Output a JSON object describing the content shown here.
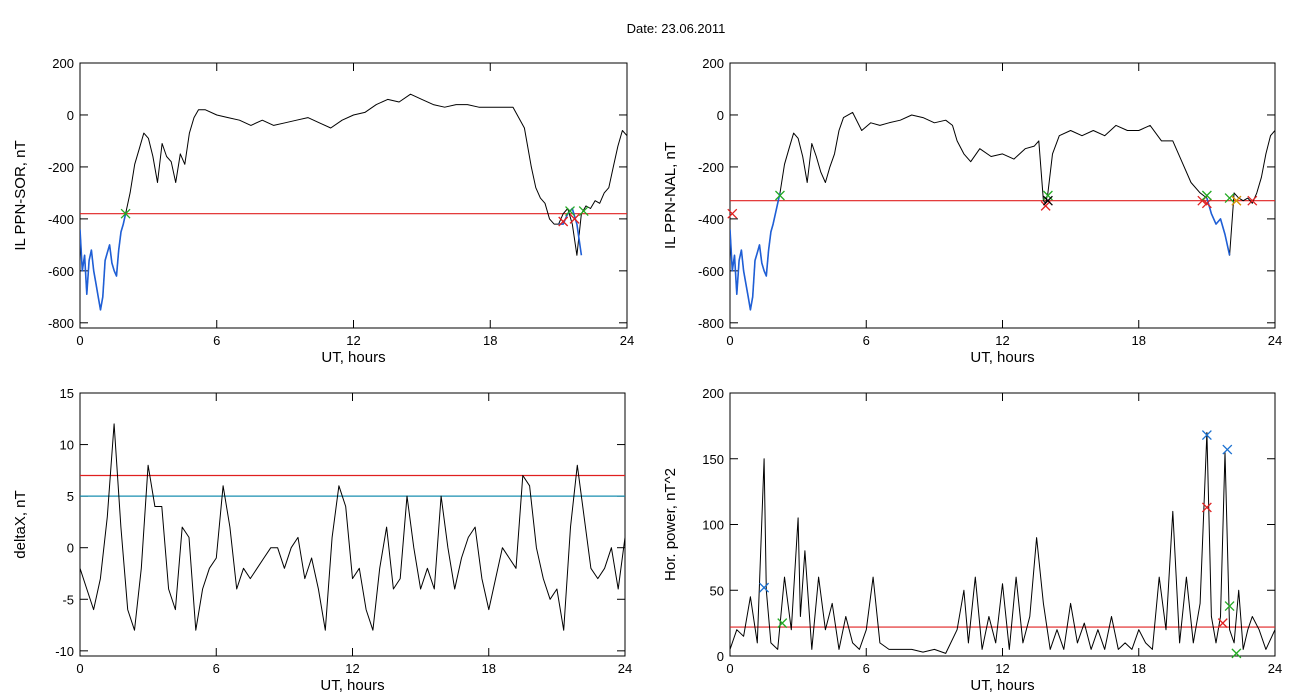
{
  "figure": {
    "title": "Date:  23.06.2011"
  },
  "chart_data": [
    {
      "id": "ppn-sor",
      "type": "line",
      "xlabel": "UT, hours",
      "ylabel": "IL PPN-SOR, nT",
      "xlim": [
        0,
        24
      ],
      "ylim": [
        -820,
        200
      ],
      "xticks": [
        0,
        6,
        12,
        18,
        24
      ],
      "yticks": [
        -800,
        -600,
        -400,
        -200,
        0,
        200
      ],
      "grid": false,
      "series": [
        {
          "color": "#000000",
          "x": [
            0,
            0.1,
            0.2,
            0.3,
            0.4,
            0.5,
            0.6,
            0.7,
            0.8,
            0.9,
            1.0,
            1.1,
            1.2,
            1.3,
            1.4,
            1.5,
            1.6,
            1.7,
            1.8,
            1.9,
            2.0,
            2.2,
            2.4,
            2.6,
            2.8,
            3.0,
            3.2,
            3.4,
            3.6,
            3.8,
            4.0,
            4.2,
            4.4,
            4.6,
            4.8,
            5.0,
            5.2,
            5.5,
            6.0,
            6.5,
            7.0,
            7.5,
            8.0,
            8.5,
            9.0,
            9.5,
            10.0,
            10.5,
            11.0,
            11.5,
            12.0,
            12.5,
            13.0,
            13.5,
            14.0,
            14.5,
            15.0,
            15.5,
            16.0,
            16.5,
            17.0,
            17.5,
            18.0,
            18.5,
            19.0,
            19.5,
            19.8,
            20.0,
            20.2,
            20.4,
            20.6,
            20.8,
            21.0,
            21.2,
            21.4,
            21.6,
            21.8,
            22.0,
            22.2,
            22.4,
            22.6,
            22.8,
            23.0,
            23.2,
            23.4,
            23.6,
            23.8,
            24.0
          ],
          "values": [
            -440,
            -600,
            -540,
            -690,
            -560,
            -520,
            -600,
            -650,
            -700,
            -750,
            -700,
            -560,
            -530,
            -500,
            -570,
            -600,
            -620,
            -520,
            -450,
            -420,
            -380,
            -300,
            -190,
            -130,
            -70,
            -90,
            -160,
            -260,
            -110,
            -160,
            -180,
            -260,
            -150,
            -190,
            -70,
            -10,
            20,
            20,
            0,
            -10,
            -20,
            -40,
            -20,
            -40,
            -30,
            -20,
            -10,
            -30,
            -50,
            -20,
            0,
            10,
            40,
            60,
            50,
            80,
            60,
            40,
            30,
            40,
            40,
            30,
            30,
            30,
            30,
            -50,
            -200,
            -280,
            -320,
            -340,
            -400,
            -420,
            -420,
            -380,
            -360,
            -420,
            -540,
            -380,
            -350,
            -360,
            -330,
            -340,
            -300,
            -280,
            -200,
            -120,
            -60,
            -80
          ]
        },
        {
          "color": "#1f5fd6",
          "x": [
            0,
            0.1,
            0.2,
            0.3,
            0.4,
            0.5,
            0.6,
            0.7,
            0.8,
            0.9,
            1.0,
            1.1,
            1.2,
            1.3,
            1.4,
            1.5,
            1.6,
            1.7,
            1.8,
            1.9,
            2.0
          ],
          "values": [
            -440,
            -600,
            -540,
            -690,
            -560,
            -520,
            -600,
            -650,
            -700,
            -750,
            -700,
            -560,
            -530,
            -500,
            -570,
            -600,
            -620,
            -520,
            -450,
            -420,
            -380
          ]
        },
        {
          "color": "#1f5fd6",
          "x": [
            21.0,
            21.2,
            21.4,
            21.6,
            21.8,
            22.0
          ],
          "values": [
            -420,
            -420,
            -380,
            -360,
            -420,
            -540
          ]
        }
      ],
      "hlines": [
        {
          "y": -380,
          "color": "#e02020"
        }
      ],
      "markers": [
        {
          "x": 2.0,
          "y": -380,
          "color": "#22aa22"
        },
        {
          "x": 21.2,
          "y": -410,
          "color": "#e02020"
        },
        {
          "x": 21.7,
          "y": -400,
          "color": "#e02020"
        },
        {
          "x": 21.5,
          "y": -370,
          "color": "#22aa22"
        },
        {
          "x": 22.1,
          "y": -370,
          "color": "#22aa22"
        }
      ]
    },
    {
      "id": "ppn-nal",
      "type": "line",
      "xlabel": "UT, hours",
      "ylabel": "IL PPN-NAL, nT",
      "xlim": [
        0,
        24
      ],
      "ylim": [
        -820,
        200
      ],
      "xticks": [
        0,
        6,
        12,
        18,
        24
      ],
      "yticks": [
        -800,
        -600,
        -400,
        -200,
        0,
        200
      ],
      "grid": false,
      "series": [
        {
          "color": "#000000",
          "x": [
            0,
            0.1,
            0.2,
            0.3,
            0.4,
            0.5,
            0.6,
            0.7,
            0.8,
            0.9,
            1.0,
            1.1,
            1.2,
            1.3,
            1.4,
            1.5,
            1.6,
            1.7,
            1.8,
            1.9,
            2.0,
            2.2,
            2.4,
            2.6,
            2.8,
            3.0,
            3.2,
            3.4,
            3.6,
            3.8,
            4.0,
            4.2,
            4.4,
            4.6,
            4.8,
            5.0,
            5.4,
            5.8,
            6.2,
            6.6,
            7.0,
            7.5,
            8.0,
            8.5,
            9.0,
            9.5,
            9.8,
            10.0,
            10.3,
            10.6,
            11.0,
            11.5,
            12.0,
            12.5,
            13.0,
            13.4,
            13.6,
            13.8,
            13.9,
            14.0,
            14.2,
            14.5,
            15.0,
            15.5,
            16.0,
            16.5,
            17.0,
            17.5,
            18.0,
            18.5,
            19.0,
            19.5,
            19.9,
            20.3,
            20.7,
            21.0,
            21.2,
            21.4,
            21.6,
            21.8,
            22.0,
            22.2,
            22.4,
            22.6,
            22.8,
            23.0,
            23.2,
            23.4,
            23.6,
            23.8,
            24.0
          ],
          "values": [
            -440,
            -600,
            -540,
            -690,
            -560,
            -520,
            -600,
            -650,
            -700,
            -750,
            -700,
            -560,
            -530,
            -500,
            -570,
            -600,
            -620,
            -520,
            -450,
            -420,
            -380,
            -300,
            -190,
            -130,
            -70,
            -90,
            -160,
            -260,
            -110,
            -160,
            -220,
            -260,
            -200,
            -150,
            -60,
            -10,
            10,
            -60,
            -30,
            -40,
            -30,
            -20,
            0,
            -10,
            -30,
            -20,
            -40,
            -100,
            -150,
            -180,
            -130,
            -160,
            -150,
            -170,
            -130,
            -120,
            -100,
            -330,
            -340,
            -300,
            -150,
            -80,
            -60,
            -80,
            -60,
            -80,
            -40,
            -60,
            -60,
            -40,
            -100,
            -100,
            -180,
            -260,
            -300,
            -320,
            -380,
            -420,
            -400,
            -460,
            -540,
            -300,
            -320,
            -330,
            -320,
            -340,
            -300,
            -240,
            -150,
            -80,
            -60
          ]
        },
        {
          "color": "#1f5fd6",
          "x": [
            0,
            0.1,
            0.2,
            0.3,
            0.4,
            0.5,
            0.6,
            0.7,
            0.8,
            0.9,
            1.0,
            1.1,
            1.2,
            1.3,
            1.4,
            1.5,
            1.6,
            1.7,
            1.8,
            1.9,
            2.0,
            2.2
          ],
          "values": [
            -440,
            -600,
            -540,
            -690,
            -560,
            -520,
            -600,
            -650,
            -700,
            -750,
            -700,
            -560,
            -530,
            -500,
            -570,
            -600,
            -620,
            -520,
            -450,
            -420,
            -380,
            -300
          ]
        },
        {
          "color": "#1f5fd6",
          "x": [
            21.0,
            21.2,
            21.4,
            21.6,
            21.8,
            22.0
          ],
          "values": [
            -320,
            -380,
            -420,
            -400,
            -460,
            -540
          ]
        }
      ],
      "hlines": [
        {
          "y": -330,
          "color": "#e02020"
        }
      ],
      "markers": [
        {
          "x": 0.1,
          "y": -380,
          "color": "#e02020"
        },
        {
          "x": 2.2,
          "y": -310,
          "color": "#22aa22"
        },
        {
          "x": 13.9,
          "y": -350,
          "color": "#e02020"
        },
        {
          "x": 14.0,
          "y": -310,
          "color": "#22aa22"
        },
        {
          "x": 14.0,
          "y": -330,
          "color": "#000000"
        },
        {
          "x": 20.8,
          "y": -330,
          "color": "#e02020"
        },
        {
          "x": 21.0,
          "y": -340,
          "color": "#e02020"
        },
        {
          "x": 21.0,
          "y": -310,
          "color": "#22aa22"
        },
        {
          "x": 22.0,
          "y": -320,
          "color": "#22aa22"
        },
        {
          "x": 22.3,
          "y": -330,
          "color": "#e02020"
        },
        {
          "x": 22.3,
          "y": -330,
          "color": "#d4a000"
        },
        {
          "x": 23.0,
          "y": -330,
          "color": "#e02020"
        }
      ]
    },
    {
      "id": "deltax",
      "type": "line",
      "xlabel": "UT, hours",
      "ylabel": "deltaX, nT",
      "xlim": [
        0,
        24
      ],
      "ylim": [
        -10.5,
        15
      ],
      "xticks": [
        0,
        6,
        12,
        18,
        24
      ],
      "yticks": [
        -10,
        -5,
        0,
        5,
        10,
        15
      ],
      "grid": false,
      "series": [
        {
          "color": "#000000",
          "x": [
            0,
            0.3,
            0.6,
            0.9,
            1.2,
            1.5,
            1.8,
            2.1,
            2.4,
            2.7,
            3.0,
            3.3,
            3.6,
            3.9,
            4.2,
            4.5,
            4.8,
            5.1,
            5.4,
            5.7,
            6.0,
            6.3,
            6.6,
            6.9,
            7.2,
            7.5,
            7.8,
            8.1,
            8.4,
            8.7,
            9.0,
            9.3,
            9.6,
            9.9,
            10.2,
            10.5,
            10.8,
            11.1,
            11.4,
            11.7,
            12.0,
            12.3,
            12.6,
            12.9,
            13.2,
            13.5,
            13.8,
            14.1,
            14.4,
            14.7,
            15.0,
            15.3,
            15.6,
            15.9,
            16.2,
            16.5,
            16.8,
            17.1,
            17.4,
            17.7,
            18.0,
            18.3,
            18.6,
            18.9,
            19.2,
            19.5,
            19.8,
            20.1,
            20.4,
            20.7,
            21.0,
            21.3,
            21.6,
            21.9,
            22.2,
            22.5,
            22.8,
            23.1,
            23.4,
            23.7,
            24.0
          ],
          "values": [
            -2,
            -4,
            -6,
            -3,
            3,
            12,
            2,
            -6,
            -8,
            -2,
            8,
            4,
            4,
            -4,
            -6,
            2,
            1,
            -8,
            -4,
            -2,
            -1,
            6,
            2,
            -4,
            -2,
            -3,
            -2,
            -1,
            0,
            0,
            -2,
            0,
            1,
            -3,
            -1,
            -4,
            -8,
            1,
            6,
            4,
            -3,
            -2,
            -6,
            -8,
            -2,
            2,
            -4,
            -3,
            5,
            0,
            -4,
            -2,
            -4,
            5,
            0,
            -4,
            -1,
            1,
            2,
            -3,
            -6,
            -3,
            0,
            -1,
            -2,
            7,
            6,
            0,
            -3,
            -5,
            -4,
            -8,
            2,
            8,
            3,
            -2,
            -3,
            -2,
            0,
            -4,
            1
          ]
        }
      ],
      "hlines": [
        {
          "y": 7,
          "color": "#e02020"
        },
        {
          "y": 5,
          "color": "#1a8fb0"
        }
      ],
      "markers": []
    },
    {
      "id": "hor-power",
      "type": "line",
      "xlabel": "UT, hours",
      "ylabel": "Hor. power, nT^2",
      "xlim": [
        0,
        24
      ],
      "ylim": [
        0,
        200
      ],
      "xticks": [
        0,
        6,
        12,
        18,
        24
      ],
      "yticks": [
        0,
        50,
        100,
        150,
        200
      ],
      "grid": false,
      "series": [
        {
          "color": "#000000",
          "x": [
            0,
            0.3,
            0.6,
            0.9,
            1.2,
            1.5,
            1.6,
            1.8,
            2.1,
            2.4,
            2.7,
            3.0,
            3.1,
            3.3,
            3.6,
            3.9,
            4.2,
            4.5,
            4.8,
            5.1,
            5.4,
            5.7,
            6.0,
            6.3,
            6.6,
            7.0,
            7.5,
            8.0,
            8.5,
            9.0,
            9.5,
            10.0,
            10.3,
            10.5,
            10.8,
            11.1,
            11.4,
            11.7,
            12.0,
            12.3,
            12.6,
            12.9,
            13.2,
            13.5,
            13.8,
            14.1,
            14.4,
            14.7,
            15.0,
            15.3,
            15.6,
            15.9,
            16.2,
            16.5,
            16.8,
            17.1,
            17.4,
            17.7,
            18.0,
            18.3,
            18.6,
            18.9,
            19.2,
            19.5,
            19.8,
            20.1,
            20.4,
            20.7,
            21.0,
            21.2,
            21.4,
            21.6,
            21.8,
            22.0,
            22.2,
            22.4,
            22.6,
            22.8,
            23.0,
            23.3,
            23.6,
            24.0
          ],
          "values": [
            5,
            20,
            15,
            45,
            10,
            150,
            50,
            10,
            5,
            60,
            20,
            105,
            30,
            80,
            5,
            60,
            20,
            40,
            5,
            30,
            10,
            5,
            20,
            60,
            10,
            5,
            5,
            5,
            3,
            5,
            2,
            20,
            50,
            10,
            60,
            5,
            30,
            10,
            55,
            5,
            60,
            10,
            30,
            90,
            40,
            5,
            20,
            5,
            40,
            10,
            25,
            5,
            20,
            5,
            30,
            5,
            10,
            5,
            20,
            10,
            5,
            60,
            20,
            110,
            10,
            60,
            10,
            40,
            170,
            30,
            10,
            30,
            155,
            20,
            10,
            50,
            5,
            20,
            30,
            20,
            5,
            20
          ]
        }
      ],
      "hlines": [
        {
          "y": 22,
          "color": "#e02020"
        }
      ],
      "markers": [
        {
          "x": 1.5,
          "y": 52,
          "color": "#1a70d0"
        },
        {
          "x": 2.3,
          "y": 25,
          "color": "#22aa22"
        },
        {
          "x": 21.0,
          "y": 168,
          "color": "#1a70d0"
        },
        {
          "x": 21.0,
          "y": 113,
          "color": "#e02020"
        },
        {
          "x": 21.7,
          "y": 25,
          "color": "#e02020"
        },
        {
          "x": 22.0,
          "y": 38,
          "color": "#22aa22"
        },
        {
          "x": 21.9,
          "y": 157,
          "color": "#1a70d0"
        },
        {
          "x": 22.3,
          "y": 2,
          "color": "#22aa22"
        }
      ]
    }
  ]
}
